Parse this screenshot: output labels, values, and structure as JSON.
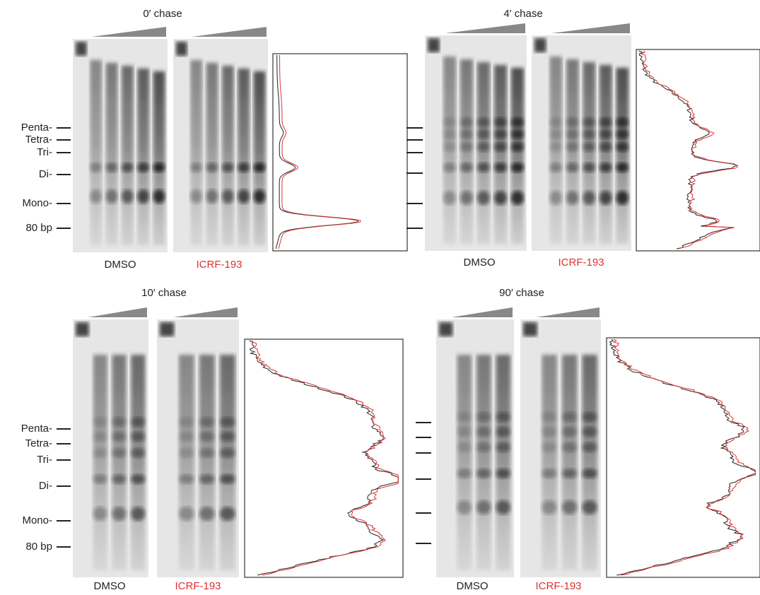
{
  "panels": [
    {
      "title": "0′ chase",
      "markers": [
        "Penta-",
        "Tetra-",
        "Tri-",
        "Di-",
        "Mono-",
        "80 bp"
      ],
      "lanes": [
        "DMSO",
        "ICRF-193"
      ]
    },
    {
      "title": "4′ chase",
      "lanes": [
        "DMSO",
        "ICRF-193"
      ]
    },
    {
      "title": "10′ chase",
      "markers": [
        "Penta-",
        "Tetra-",
        "Tri-",
        "Di-",
        "Mono-",
        "80 bp"
      ],
      "lanes": [
        "DMSO",
        "ICRF-193"
      ]
    },
    {
      "title": "90′ chase",
      "lanes": [
        "DMSO",
        "ICRF-193"
      ]
    }
  ]
}
